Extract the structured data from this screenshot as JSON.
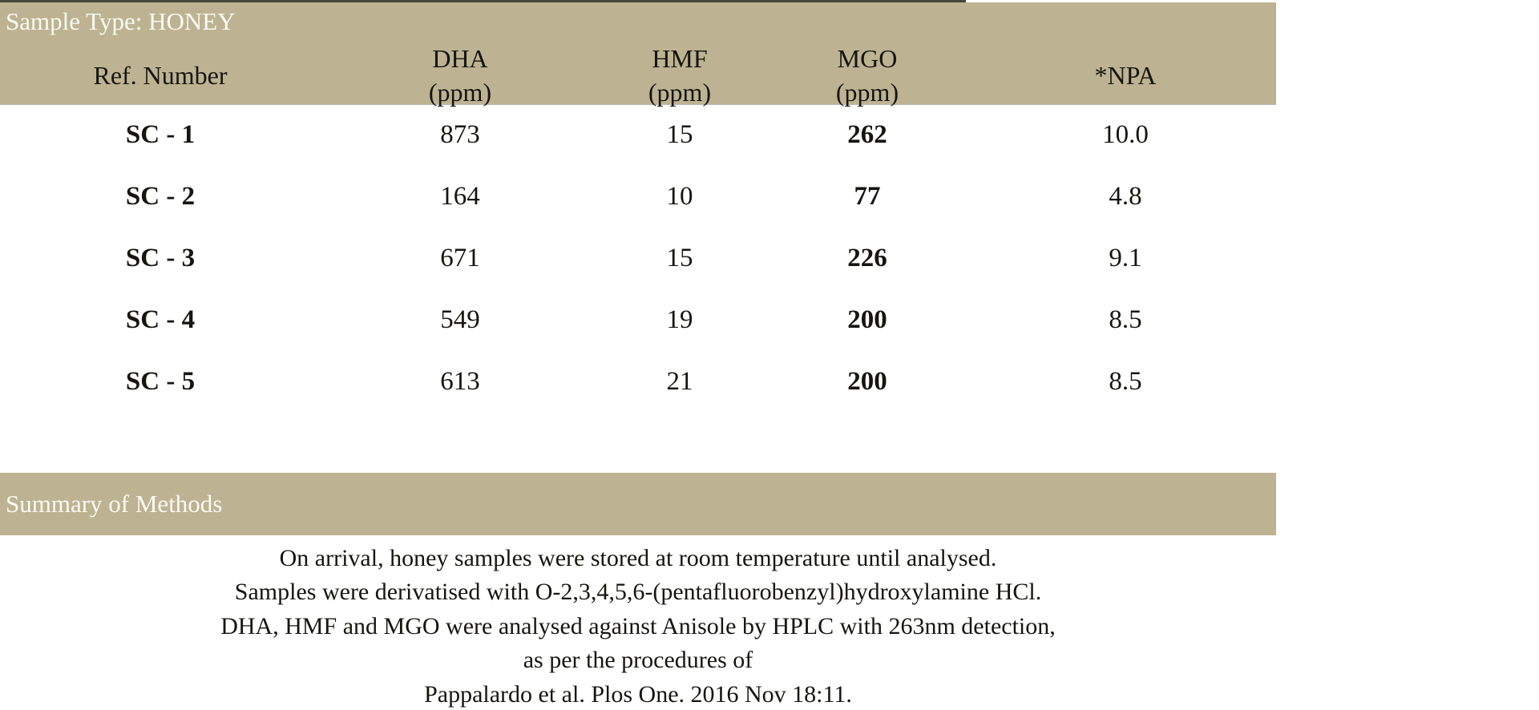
{
  "table": {
    "sample_type_label": "Sample Type: HONEY",
    "columns": [
      {
        "label": "Ref. Number",
        "sub": ""
      },
      {
        "label": "DHA",
        "sub": "(ppm)"
      },
      {
        "label": "HMF",
        "sub": "(ppm)"
      },
      {
        "label": "MGO",
        "sub": "(ppm)"
      },
      {
        "label": "*NPA",
        "sub": ""
      }
    ],
    "rows": [
      {
        "ref": "SC - 1",
        "dha": "873",
        "hmf": "15",
        "mgo": "262",
        "npa": "10.0"
      },
      {
        "ref": "SC - 2",
        "dha": "164",
        "hmf": "10",
        "mgo": "77",
        "npa": "4.8"
      },
      {
        "ref": "SC - 3",
        "dha": "671",
        "hmf": "15",
        "mgo": "226",
        "npa": "9.1"
      },
      {
        "ref": "SC - 4",
        "dha": "549",
        "hmf": "19",
        "mgo": "200",
        "npa": "8.5"
      },
      {
        "ref": "SC - 5",
        "dha": "613",
        "hmf": "21",
        "mgo": "200",
        "npa": "8.5"
      }
    ]
  },
  "summary": {
    "header": "Summary of Methods",
    "lines": [
      "On arrival, honey samples were stored at room temperature until analysed.",
      "Samples were derivatised with O-2,3,4,5,6-(pentafluorobenzyl)hydroxylamine HCl.",
      "DHA, HMF and MGO were analysed against Anisole by HPLC with 263nm detection,",
      "as per the procedures of",
      "Pappalardo et al. Plos One. 2016 Nov 18:11."
    ]
  },
  "colors": {
    "band": "#bdb392",
    "band_text": "#fbfaf3",
    "text": "#161511",
    "top_line": "#45453e"
  }
}
